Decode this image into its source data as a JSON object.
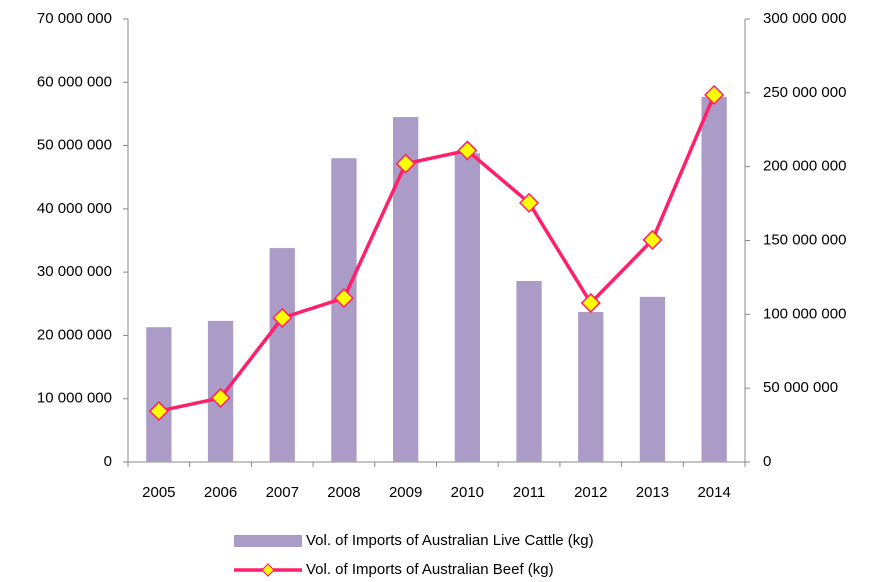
{
  "chart_data": {
    "type": "combo",
    "categories": [
      "2005",
      "2006",
      "2007",
      "2008",
      "2009",
      "2010",
      "2011",
      "2012",
      "2013",
      "2014"
    ],
    "series": [
      {
        "name": "Vol. of Imports of Australian Live Cattle (kg)",
        "type": "bar",
        "color": "#ab9bc7",
        "values": [
          21300000,
          22300000,
          33800000,
          48000000,
          54500000,
          48800000,
          28600000,
          23700000,
          26100000,
          57700000
        ]
      },
      {
        "name": "Vol. of Imports of Australian Beef (kg)",
        "type": "line",
        "axis": "y2",
        "color": "#ff1f6b",
        "marker_color": "#ffff00",
        "values": [
          34500000,
          43400000,
          97600000,
          111000000,
          202000000,
          211000000,
          175500000,
          107700000,
          150400000,
          248600000
        ]
      }
    ],
    "ylim": [
      0,
      70000000
    ],
    "yticks": [
      0,
      {
        "value": 10000000,
        "label": "10 000 000"
      },
      {
        "value": 20000000,
        "label": "20 000 000"
      },
      {
        "value": 30000000,
        "label": "30 000 000"
      },
      {
        "value": 40000000,
        "label": "40 000 000"
      },
      {
        "value": 50000000,
        "label": "50 000 000"
      },
      {
        "value": 60000000,
        "label": "60 000 000"
      },
      {
        "value": 70000000,
        "label": "70 000 000"
      }
    ],
    "y2lim": [
      0,
      300000000
    ],
    "y2ticks": [
      0,
      {
        "value": 50000000,
        "label": "50 000 000"
      },
      {
        "value": 100000000,
        "label": "100 000 000"
      },
      {
        "value": 150000000,
        "label": "150 000 000"
      },
      {
        "value": 200000000,
        "label": "200 000 000"
      },
      {
        "value": 250000000,
        "label": "250 000 000"
      },
      {
        "value": 300000000,
        "label": "300 000 000"
      }
    ],
    "grid": false
  }
}
